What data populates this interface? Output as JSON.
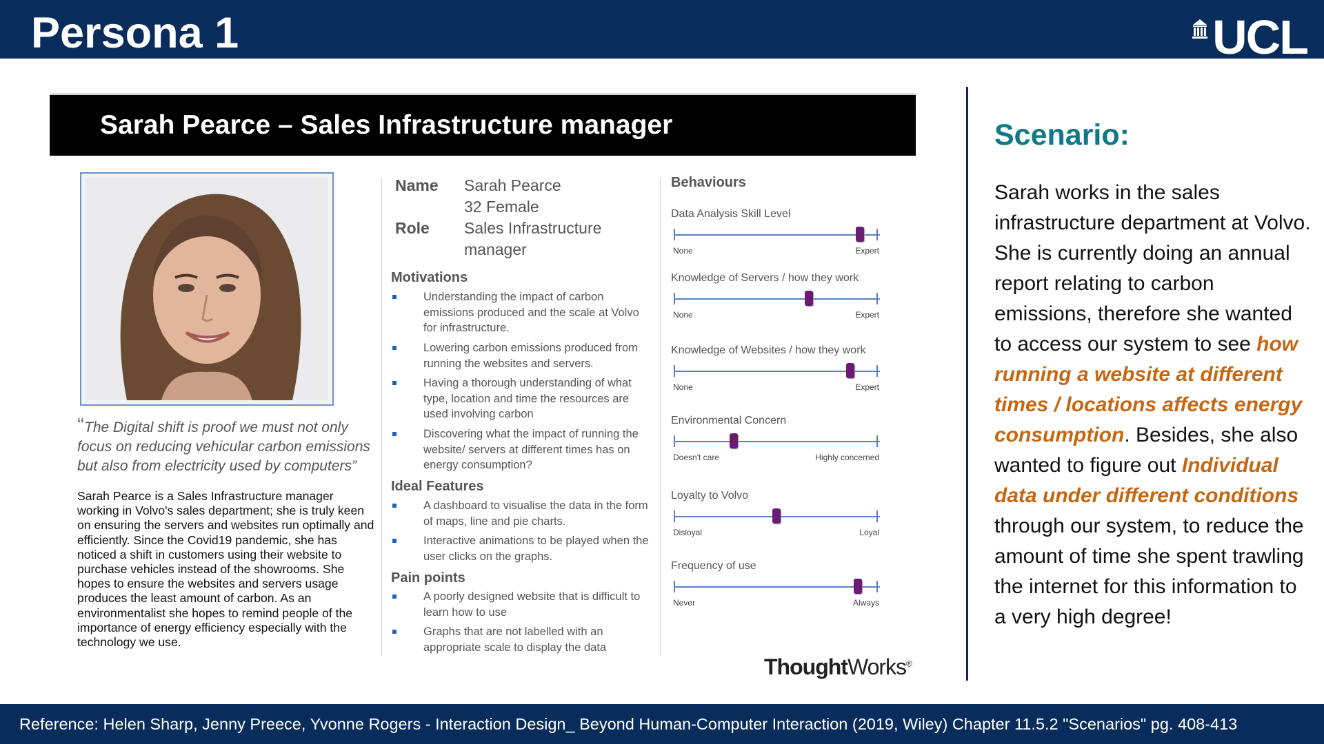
{
  "slide": {
    "title": "Persona 1",
    "logo_text": "UCL"
  },
  "persona": {
    "header": "Sarah Pearce – Sales Infrastructure manager",
    "quote": "The Digital shift is proof we must not only focus on reducing vehicular carbon emissions but also from electricity used by computers”",
    "quote_open": "“",
    "bio": "Sarah Pearce is a Sales Infrastructure manager working in Volvo's sales department; she is truly keen on ensuring the servers and websites run optimally and efficiently. Since the Covid19 pandemic, she has noticed a shift in customers using their website to purchase vehicles instead of the showrooms. She hopes to ensure the websites and servers usage produces the least amount of carbon. As an environmentalist she hopes to remind people of the importance of energy efficiency especially with the technology we use.",
    "info": {
      "name_label": "Name",
      "name_value": "Sarah Pearce",
      "age_gender": "32 Female",
      "role_label": "Role",
      "role_line1": "Sales Infrastructure",
      "role_line2": "manager"
    },
    "motivations": {
      "heading": "Motivations",
      "items": [
        "Understanding the impact of carbon emissions produced and the scale at Volvo for infrastructure.",
        "Lowering carbon emissions produced from running the websites and servers.",
        "Having a thorough understanding of what type, location and time the resources are used involving carbon",
        "Discovering what the impact of running the website/ servers at different times has on energy consumption?"
      ]
    },
    "ideal_features": {
      "heading": "Ideal Features",
      "items": [
        "A dashboard to visualise the data in the form of maps, line and pie charts.",
        "Interactive animations to be played when the user clicks on the graphs."
      ]
    },
    "pain_points": {
      "heading": "Pain points",
      "items": [
        "A poorly designed website that is difficult to learn how to use",
        "Graphs that are not labelled with an appropriate scale to display the data"
      ]
    },
    "behaviours": {
      "heading": "Behaviours",
      "sliders": [
        {
          "label": "Data Analysis Skill Level",
          "low": "None",
          "high": "Expert",
          "value": 0.91
        },
        {
          "label": "Knowledge of Servers / how they work",
          "low": "None",
          "high": "Expert",
          "value": 0.66
        },
        {
          "label": "Knowledge of Websites / how they work",
          "low": "None",
          "high": "Expert",
          "value": 0.86
        },
        {
          "label": "Environmental Concern",
          "low": "Doesn't care",
          "high": "Highly concerned",
          "value": 0.29
        },
        {
          "label": "Loyalty to Volvo",
          "low": "Disloyal",
          "high": "Loyal",
          "value": 0.5
        },
        {
          "label": "Frequency of use",
          "low": "Never",
          "high": "Always",
          "value": 0.9
        }
      ]
    },
    "brand_bold": "Thought",
    "brand_light": "Works",
    "brand_mark": "®"
  },
  "scenario": {
    "title": "Scenario:",
    "text_1": "Sarah works in the sales infrastructure department at Volvo. She is currently doing an annual report relating to carbon emissions, therefore she wanted to access our system to see ",
    "highlight_1": "how running a website at different times / locations affects energy consumption",
    "text_2": ". Besides, she also wanted to figure out ",
    "highlight_2": "Individual data under different conditions",
    "text_3": " through our system, to reduce the amount of time she spent trawling the internet for this information to a very high degree!"
  },
  "footer": {
    "reference": "Reference: Helen Sharp, Jenny Preece, Yvonne Rogers - Interaction Design_ Beyond Human-Computer Interaction (2019, Wiley) Chapter 11.5.2 \"Scenarios\" pg. 408-413"
  },
  "colors": {
    "navy": "#082c5c",
    "teal": "#0f7a86",
    "orange": "#c56712",
    "knob": "#6a1b74"
  }
}
